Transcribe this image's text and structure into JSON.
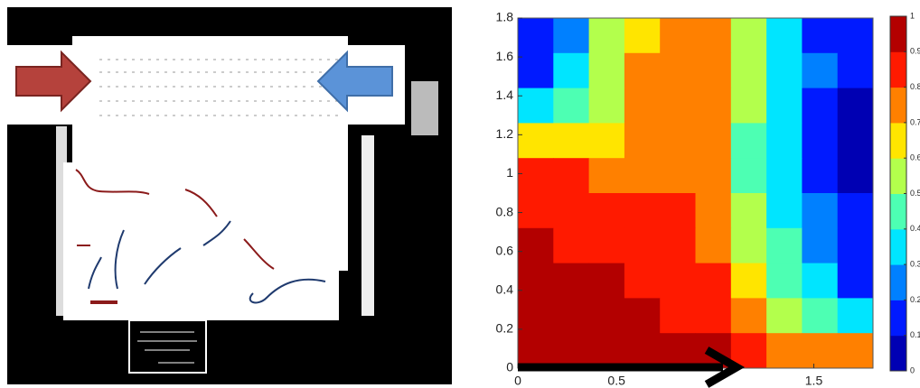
{
  "chart_data": {
    "type": "contour",
    "xlim": [
      0,
      1.8
    ],
    "ylim": [
      0,
      1.8
    ],
    "xticks": [
      0,
      0.5,
      1.5
    ],
    "yticks": [
      0,
      0.2,
      0.4,
      0.6,
      0.8,
      1,
      1.2,
      1.4,
      1.6,
      1.8
    ],
    "clim": [
      0,
      1
    ],
    "cticks": [
      0,
      0.1,
      0.2,
      0.3,
      0.4,
      0.5,
      0.6,
      0.7,
      0.8,
      0.9,
      1
    ],
    "colormap": "jet",
    "levels": 10,
    "grid_x": [
      0.09,
      0.27,
      0.45,
      0.63,
      0.81,
      0.99,
      1.17,
      1.35,
      1.53,
      1.71
    ],
    "grid_y": [
      1.71,
      1.53,
      1.35,
      1.17,
      0.99,
      0.81,
      0.63,
      0.45,
      0.27,
      0.09
    ],
    "z": [
      [
        0.1,
        0.25,
        0.5,
        0.65,
        0.75,
        0.75,
        0.55,
        0.35,
        0.15,
        0.1
      ],
      [
        0.15,
        0.3,
        0.5,
        0.7,
        0.75,
        0.75,
        0.55,
        0.35,
        0.2,
        0.1
      ],
      [
        0.3,
        0.4,
        0.55,
        0.7,
        0.75,
        0.72,
        0.5,
        0.3,
        0.15,
        0.05
      ],
      [
        0.65,
        0.65,
        0.68,
        0.75,
        0.75,
        0.7,
        0.45,
        0.3,
        0.15,
        0.05
      ],
      [
        0.8,
        0.8,
        0.78,
        0.78,
        0.77,
        0.72,
        0.45,
        0.3,
        0.15,
        0.05
      ],
      [
        0.88,
        0.85,
        0.85,
        0.85,
        0.85,
        0.75,
        0.5,
        0.35,
        0.2,
        0.1
      ],
      [
        0.9,
        0.88,
        0.85,
        0.85,
        0.85,
        0.78,
        0.55,
        0.4,
        0.25,
        0.1
      ],
      [
        0.92,
        0.92,
        0.9,
        0.88,
        0.85,
        0.8,
        0.62,
        0.45,
        0.3,
        0.15
      ],
      [
        0.95,
        0.95,
        0.95,
        0.92,
        0.88,
        0.82,
        0.7,
        0.55,
        0.4,
        0.3
      ],
      [
        0.95,
        0.95,
        0.95,
        0.95,
        0.95,
        0.9,
        0.82,
        0.75,
        0.7,
        0.75
      ]
    ]
  }
}
